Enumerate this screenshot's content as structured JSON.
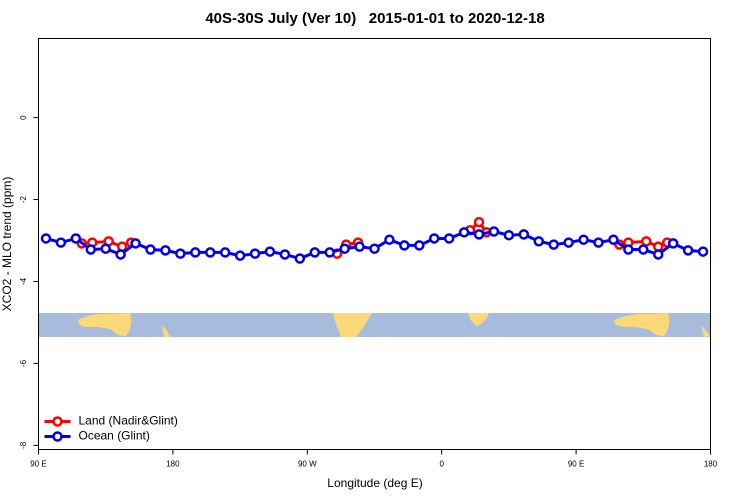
{
  "chart_data": {
    "type": "line",
    "title": "40S-30S July (Ver 10)   2015-01-01 to 2020-12-18",
    "xlabel": "Longitude (deg E)",
    "ylabel": "XCO2 - MLO trend (ppm)",
    "xlim": [
      90,
      540
    ],
    "ylim": [
      -8.1,
      1.93
    ],
    "xticks": [
      {
        "value": 90,
        "label": "90 E"
      },
      {
        "value": 180,
        "label": "180"
      },
      {
        "value": 270,
        "label": "90 W"
      },
      {
        "value": 360,
        "label": "0"
      },
      {
        "value": 450,
        "label": "90 E"
      },
      {
        "value": 540,
        "label": "180"
      }
    ],
    "yticks": [
      -8,
      -6,
      -4,
      -2,
      0
    ],
    "legend": "bottom-left",
    "series": [
      {
        "name": "Land (Nadir&Glint)",
        "color": "#ff0000",
        "x": [
          119,
          126,
          137,
          146,
          152,
          null,
          290,
          296,
          304,
          null,
          379,
          385,
          390,
          null,
          479,
          485,
          497,
          505,
          511
        ],
        "values": [
          -3.07,
          -3.05,
          -3.02,
          -3.15,
          -3.05,
          null,
          -3.32,
          -3.1,
          -3.05,
          null,
          -2.75,
          -2.55,
          -2.8,
          null,
          -3.1,
          -3.05,
          -3.02,
          -3.15,
          -3.05
        ]
      },
      {
        "name": "Ocean (Glint)",
        "color": "#0000ee",
        "x": [
          95,
          105,
          115,
          125,
          135,
          145,
          155,
          165,
          175,
          185,
          195,
          205,
          215,
          225,
          235,
          245,
          255,
          265,
          275,
          285,
          295,
          305,
          315,
          325,
          335,
          345,
          355,
          365,
          375,
          385,
          395,
          405,
          415,
          425,
          435,
          445,
          455,
          465,
          475,
          485,
          495,
          505,
          515,
          525,
          535
        ],
        "values": [
          -2.95,
          -3.05,
          -2.95,
          -3.22,
          -3.2,
          -3.34,
          -3.07,
          -3.22,
          -3.24,
          -3.32,
          -3.29,
          -3.29,
          -3.29,
          -3.37,
          -3.32,
          -3.27,
          -3.34,
          -3.44,
          -3.29,
          -3.29,
          -3.2,
          -3.15,
          -3.2,
          -2.98,
          -3.12,
          -3.12,
          -2.95,
          -2.95,
          -2.8,
          -2.85,
          -2.78,
          -2.87,
          -2.85,
          -3.02,
          -3.1,
          -3.05,
          -2.98,
          -3.05,
          -2.98,
          -3.22,
          -3.22,
          -3.34,
          -3.07,
          -3.24,
          -3.27
        ]
      }
    ]
  }
}
